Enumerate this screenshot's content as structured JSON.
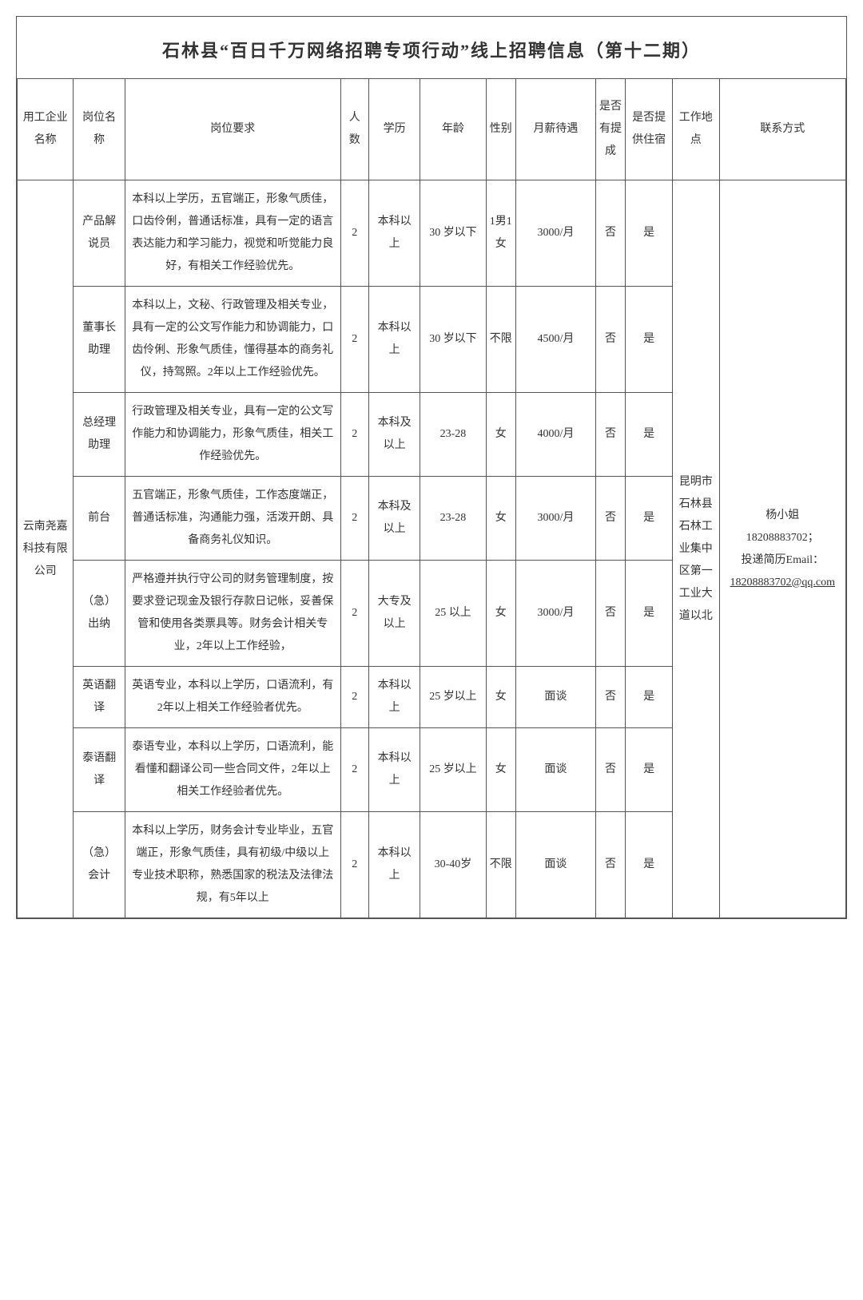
{
  "title": "石林县“百日千万网络招聘专项行动”线上招聘信息（第十二期）",
  "headers": {
    "company": "用工企业名称",
    "position": "岗位名称",
    "requirements": "岗位要求",
    "count": "人数",
    "education": "学历",
    "age": "年龄",
    "gender": "性别",
    "salary": "月薪待遇",
    "commission": "是否有提成",
    "accommodation": "是否提供住宿",
    "location": "工作地点",
    "contact": "联系方式"
  },
  "company": "云南尧嘉科技有限公司",
  "location": "昆明市石林县石林工业集中区第一工业大道以北",
  "contact_name": "杨小姐",
  "contact_phone": "18208883702；",
  "contact_resume": "投递简历Email：",
  "contact_email": "18208883702@qq.com",
  "rows": [
    {
      "position": "产品解说员",
      "requirements": "本科以上学历，五官端正，形象气质佳，口齿伶俐，普通话标准，具有一定的语言表达能力和学习能力，视觉和听觉能力良好，有相关工作经验优先。",
      "count": "2",
      "education": "本科以上",
      "age": "30 岁以下",
      "gender": "1男1女",
      "salary": "3000/月",
      "commission": "否",
      "accommodation": "是"
    },
    {
      "position": "董事长助理",
      "requirements": "本科以上，文秘、行政管理及相关专业，具有一定的公文写作能力和协调能力，口齿伶俐、形象气质佳，懂得基本的商务礼仪，持驾照。2年以上工作经验优先。",
      "count": "2",
      "education": "本科以上",
      "age": "30 岁以下",
      "gender": "不限",
      "salary": "4500/月",
      "commission": "否",
      "accommodation": "是"
    },
    {
      "position": "总经理助理",
      "requirements": "行政管理及相关专业，具有一定的公文写作能力和协调能力，形象气质佳，相关工作经验优先。",
      "count": "2",
      "education": "本科及以上",
      "age": "23-28",
      "gender": "女",
      "salary": "4000/月",
      "commission": "否",
      "accommodation": "是"
    },
    {
      "position": "前台",
      "requirements": "五官端正，形象气质佳，工作态度端正，普通话标准，沟通能力强，活泼开朗、具备商务礼仪知识。",
      "count": "2",
      "education": "本科及以上",
      "age": "23-28",
      "gender": "女",
      "salary": "3000/月",
      "commission": "否",
      "accommodation": "是"
    },
    {
      "position": "（急）出纳",
      "requirements": "严格遵并执行守公司的财务管理制度，按要求登记现金及银行存款日记帐，妥善保管和使用各类票具等。财务会计相关专业，2年以上工作经验，",
      "count": "2",
      "education": "大专及以上",
      "age": "25 以上",
      "gender": "女",
      "salary": "3000/月",
      "commission": "否",
      "accommodation": "是"
    },
    {
      "position": "英语翻译",
      "requirements": "英语专业，本科以上学历，口语流利，有2年以上相关工作经验者优先。",
      "count": "2",
      "education": "本科以上",
      "age": "25 岁以上",
      "gender": "女",
      "salary": "面谈",
      "commission": "否",
      "accommodation": "是"
    },
    {
      "position": "泰语翻译",
      "requirements": "泰语专业，本科以上学历，口语流利，能看懂和翻译公司一些合同文件，2年以上相关工作经验者优先。",
      "count": "2",
      "education": "本科以上",
      "age": "25 岁以上",
      "gender": "女",
      "salary": "面谈",
      "commission": "否",
      "accommodation": "是"
    },
    {
      "position": "（急）会计",
      "requirements": "本科以上学历，财务会计专业毕业，五官端正，形象气质佳，具有初级/中级以上专业技术职称，熟悉国家的税法及法律法规，有5年以上",
      "count": "2",
      "education": "本科以上",
      "age": "30-40岁",
      "gender": "不限",
      "salary": "面谈",
      "commission": "否",
      "accommodation": "是"
    }
  ]
}
